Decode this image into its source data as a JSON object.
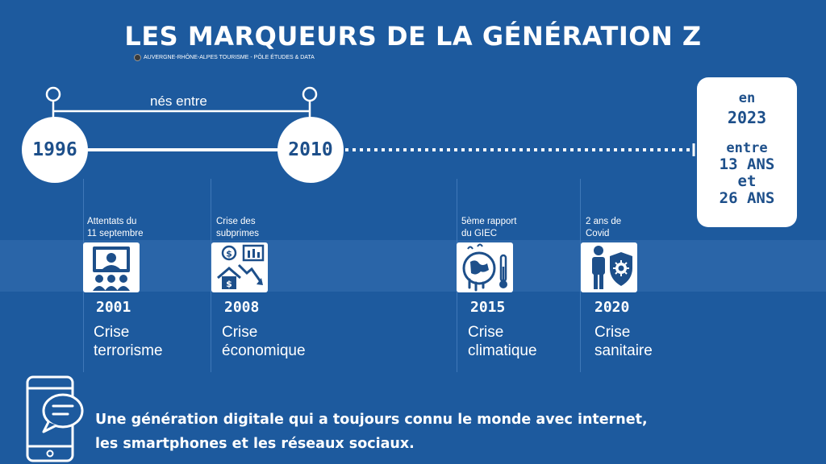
{
  "title": "LES MARQUEURS DE LA GÉNÉRATION Z",
  "credit": "AUVERGNE-RHÔNE-ALPES TOURISME - PÔLE ÉTUDES & DATA",
  "birth_range": {
    "label": "nés entre",
    "start": "1996",
    "end": "2010"
  },
  "age_box": {
    "en": "en",
    "year": "2023",
    "entre": "entre",
    "min": "13 ANS",
    "et": "et",
    "max": "26 ANS"
  },
  "events": [
    {
      "label_line1": "Attentats du",
      "label_line2": "11 septembre",
      "year": "2001",
      "crise_line1": "Crise",
      "crise_line2": "terrorisme",
      "icon": "tv-anchor-audience-icon"
    },
    {
      "label_line1": "Crise des",
      "label_line2": "subprimes",
      "year": "2008",
      "crise_line1": "Crise",
      "crise_line2": "économique",
      "icon": "finance-decline-icon"
    },
    {
      "label_line1": "5ème rapport",
      "label_line2": "du GIEC",
      "year": "2015",
      "crise_line1": "Crise",
      "crise_line2": "climatique",
      "icon": "melting-earth-thermometer-icon"
    },
    {
      "label_line1": "2 ans de",
      "label_line2": "Covid",
      "year": "2020",
      "crise_line1": "Crise",
      "crise_line2": "sanitaire",
      "icon": "person-virus-shield-icon"
    }
  ],
  "bottom": {
    "line1": "Une génération digitale qui a toujours connu le monde avec internet,",
    "line2": "les smartphones et les réseaux sociaux."
  },
  "colors": {
    "background": "#1d5a9e",
    "band": "#2f6aab",
    "accent_dark": "#1d4f8a",
    "white": "#ffffff"
  }
}
